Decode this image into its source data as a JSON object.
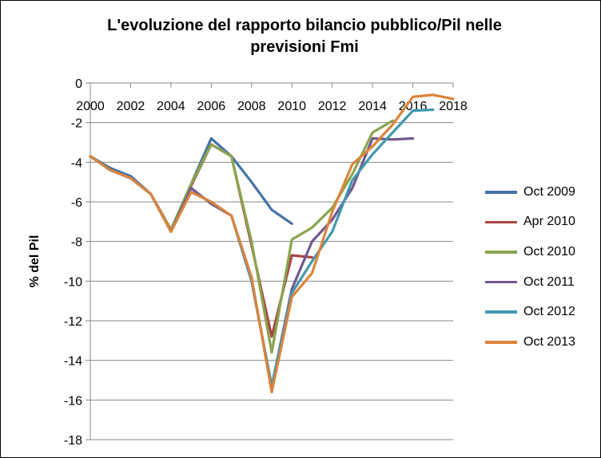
{
  "chart_data": {
    "type": "line",
    "title_line1": "L'evoluzione del rapporto bilancio pubblico/Pil  nelle",
    "title_line2": "previsioni Fmi",
    "xlabel": "",
    "ylabel": "% del Pil",
    "xlim": [
      2000,
      2018
    ],
    "ylim": [
      -18,
      0
    ],
    "x_ticks": [
      "2000",
      "2002",
      "2004",
      "2006",
      "2008",
      "2010",
      "2012",
      "2014",
      "2016",
      "2018"
    ],
    "y_ticks": [
      "0",
      "-2",
      "-4",
      "-6",
      "-8",
      "-10",
      "-12",
      "-14",
      "-16",
      "-18"
    ],
    "x_axis_position": "top",
    "grid": "horizontal",
    "legend_position": "right",
    "series": [
      {
        "name": "Oct 2009",
        "color": "#4572A7",
        "x": [
          2000,
          2001,
          2002,
          2003,
          2004,
          2005,
          2006,
          2007,
          2008,
          2009,
          2010
        ],
        "y": [
          -3.7,
          -4.3,
          -4.7,
          -5.6,
          -7.4,
          -5.1,
          -2.8,
          -3.7,
          -5.0,
          -6.4,
          -7.1
        ]
      },
      {
        "name": "Apr 2010",
        "color": "#AA4643",
        "x": [
          2000,
          2001,
          2002,
          2003,
          2004,
          2005,
          2006,
          2007,
          2008,
          2009,
          2010,
          2011
        ],
        "y": [
          -3.7,
          -4.4,
          -4.8,
          -5.6,
          -7.4,
          -5.2,
          -3.1,
          -3.7,
          -8.2,
          -12.8,
          -8.7,
          -8.8
        ]
      },
      {
        "name": "Oct 2010",
        "color": "#89A54E",
        "x": [
          2000,
          2001,
          2002,
          2003,
          2004,
          2005,
          2006,
          2007,
          2008,
          2009,
          2010,
          2011,
          2012,
          2013,
          2014,
          2015
        ],
        "y": [
          -3.7,
          -4.4,
          -4.8,
          -5.6,
          -7.4,
          -5.1,
          -3.1,
          -3.7,
          -8.0,
          -13.6,
          -7.9,
          -7.3,
          -6.3,
          -4.6,
          -2.5,
          -1.9
        ]
      },
      {
        "name": "Oct 2011",
        "color": "#71588F",
        "x": [
          2000,
          2001,
          2002,
          2003,
          2004,
          2005,
          2006,
          2007,
          2008,
          2009,
          2010,
          2011,
          2012,
          2013,
          2014,
          2015,
          2016
        ],
        "y": [
          -3.7,
          -4.4,
          -4.8,
          -5.6,
          -7.5,
          -5.3,
          -6.1,
          -6.7,
          -10.0,
          -15.3,
          -10.4,
          -8.0,
          -6.9,
          -5.3,
          -2.8,
          -2.85,
          -2.8
        ]
      },
      {
        "name": "Oct 2012",
        "color": "#4198AF",
        "x": [
          2000,
          2001,
          2002,
          2003,
          2004,
          2005,
          2006,
          2007,
          2008,
          2009,
          2010,
          2011,
          2012,
          2013,
          2014,
          2015,
          2016,
          2017
        ],
        "y": [
          -3.7,
          -4.4,
          -4.8,
          -5.6,
          -7.5,
          -5.5,
          -6.0,
          -6.7,
          -10.0,
          -15.3,
          -10.6,
          -9.0,
          -7.5,
          -4.9,
          -3.6,
          -2.5,
          -1.4,
          -1.35
        ]
      },
      {
        "name": "Oct 2013",
        "color": "#DB843D",
        "x": [
          2000,
          2001,
          2002,
          2003,
          2004,
          2005,
          2006,
          2007,
          2008,
          2009,
          2010,
          2011,
          2012,
          2013,
          2014,
          2015,
          2016,
          2017,
          2018
        ],
        "y": [
          -3.7,
          -4.4,
          -4.8,
          -5.6,
          -7.5,
          -5.5,
          -6.0,
          -6.7,
          -9.8,
          -15.6,
          -10.8,
          -9.6,
          -6.5,
          -4.1,
          -3.2,
          -2.1,
          -0.7,
          -0.6,
          -0.8
        ]
      }
    ]
  }
}
